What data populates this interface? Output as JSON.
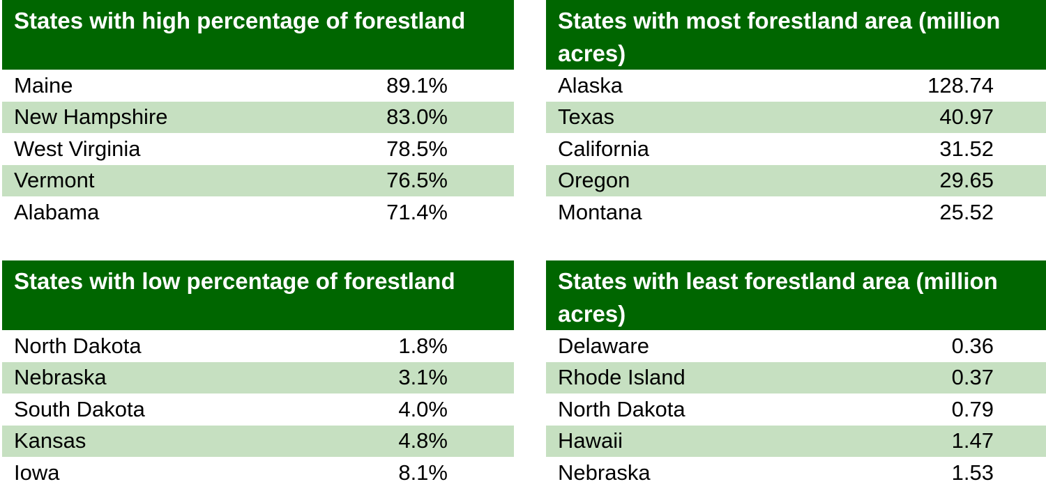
{
  "colors": {
    "header_bg": "#006600",
    "header_text": "#ffffff",
    "alt_row_bg": "#c6e0c1"
  },
  "tables": [
    {
      "title": "States with high percentage of forestland",
      "rows": [
        {
          "state": "Maine",
          "value": "89.1%"
        },
        {
          "state": "New Hampshire",
          "value": "83.0%"
        },
        {
          "state": "West Virginia",
          "value": "78.5%"
        },
        {
          "state": "Vermont",
          "value": "76.5%"
        },
        {
          "state": "Alabama",
          "value": "71.4%"
        }
      ]
    },
    {
      "title": "States with most forestland area (million acres)",
      "rows": [
        {
          "state": "Alaska",
          "value": "128.74"
        },
        {
          "state": "Texas",
          "value": "40.97"
        },
        {
          "state": "California",
          "value": "31.52"
        },
        {
          "state": "Oregon",
          "value": "29.65"
        },
        {
          "state": "Montana",
          "value": "25.52"
        }
      ]
    },
    {
      "title": "States with low percentage of forestland",
      "rows": [
        {
          "state": "North Dakota",
          "value": "1.8%"
        },
        {
          "state": "Nebraska",
          "value": "3.1%"
        },
        {
          "state": "South Dakota",
          "value": "4.0%"
        },
        {
          "state": "Kansas",
          "value": "4.8%"
        },
        {
          "state": "Iowa",
          "value": "8.1%"
        }
      ]
    },
    {
      "title": "States with least forestland area (million acres)",
      "rows": [
        {
          "state": "Delaware",
          "value": "0.36"
        },
        {
          "state": "Rhode Island",
          "value": "0.37"
        },
        {
          "state": "North Dakota",
          "value": "0.79"
        },
        {
          "state": "Hawaii",
          "value": "1.47"
        },
        {
          "state": "Nebraska",
          "value": "1.53"
        }
      ]
    }
  ]
}
